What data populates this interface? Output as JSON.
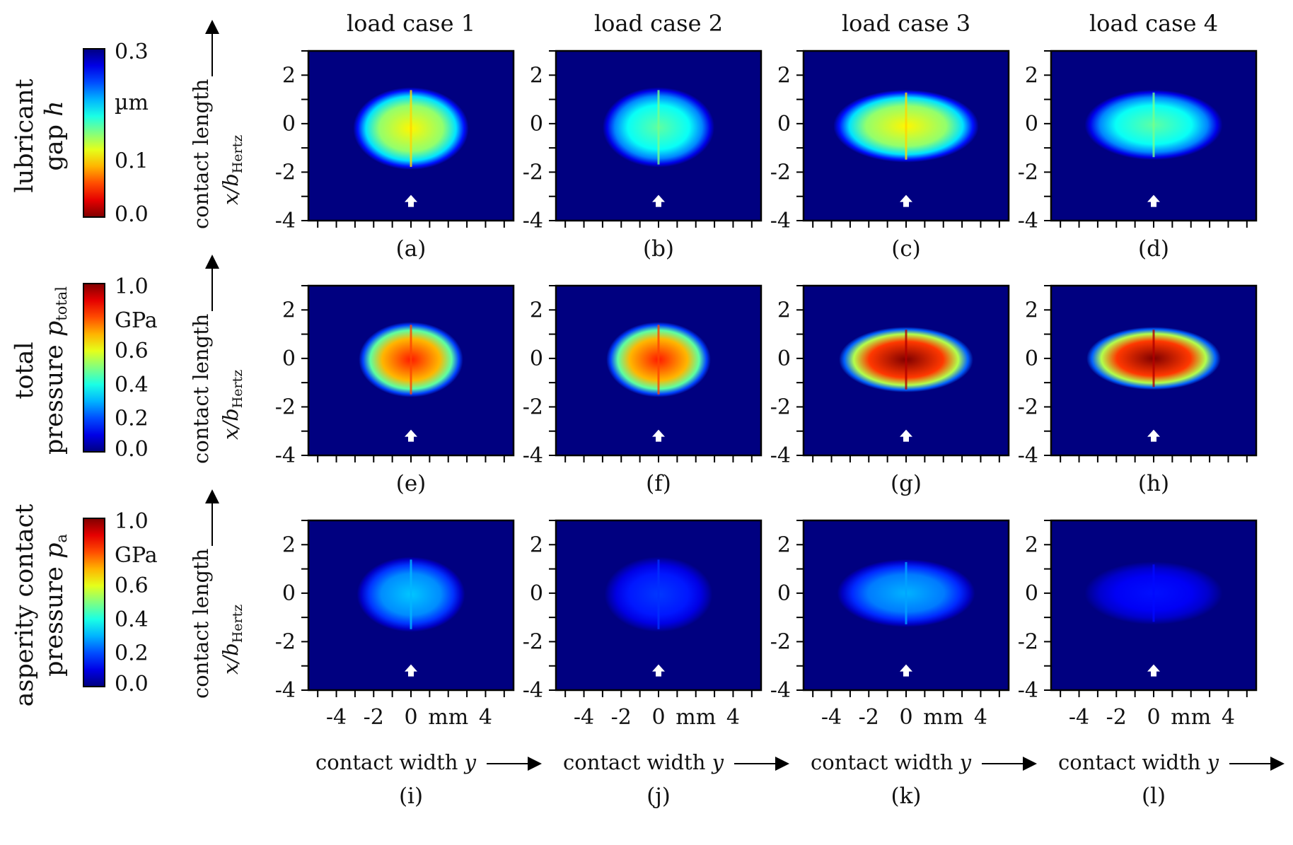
{
  "columns": [
    "load case 1",
    "load case 2",
    "load case 3",
    "load case 4"
  ],
  "panel_letters": [
    "(a)",
    "(b)",
    "(c)",
    "(d)",
    "(e)",
    "(f)",
    "(g)",
    "(h)",
    "(i)",
    "(j)",
    "(k)",
    "(l)"
  ],
  "rows": [
    {
      "label_line1": "lubricant",
      "label_line2_main": "gap ",
      "label_line2_var": "h",
      "label_line2_sub": "",
      "colorbar": {
        "ticks": [
          "0.3",
          "0.1",
          "0.0"
        ],
        "unit": "µm",
        "unit_after": "0.3",
        "direction": "low-red",
        "range": [
          0.0,
          0.3
        ]
      }
    },
    {
      "label_line1": "total",
      "label_line2_main": "pressure ",
      "label_line2_var": "p",
      "label_line2_sub": "total",
      "colorbar": {
        "ticks": [
          "1.0",
          "0.6",
          "0.4",
          "0.2",
          "0.0"
        ],
        "unit": "GPa",
        "unit_after": "1.0",
        "direction": "high-red",
        "range": [
          0.0,
          1.0
        ]
      }
    },
    {
      "label_line1": "asperity contact",
      "label_line2_main": "pressure ",
      "label_line2_var": "p",
      "label_line2_sub": "a",
      "colorbar": {
        "ticks": [
          "1.0",
          "0.6",
          "0.4",
          "0.2",
          "0.0"
        ],
        "unit": "GPa",
        "unit_after": "1.0",
        "direction": "high-red",
        "range": [
          0.0,
          1.0
        ]
      }
    }
  ],
  "y_axis": {
    "label_main": "contact length",
    "label_var": "x/b",
    "label_sub": "Hertz",
    "ticks": [
      "2",
      "0",
      "-2",
      "-4"
    ],
    "range": [
      -4,
      3
    ]
  },
  "x_axis": {
    "label_main": "contact width ",
    "label_var": "y",
    "ticks": [
      "-4",
      "-2",
      "0",
      "mm",
      "4"
    ],
    "range": [
      -5.5,
      5.5
    ]
  },
  "chart_data": {
    "type": "heatmap",
    "layout": "3 rows x 4 columns",
    "columns": [
      "load case 1",
      "load case 2",
      "load case 3",
      "load case 4"
    ],
    "row_quantities": [
      "lubricant gap h (µm)",
      "total pressure p_total (GPa)",
      "asperity contact pressure p_a (GPa)"
    ],
    "colormap": "jet",
    "panels": [
      {
        "id": "(a)",
        "quantity": "h",
        "half_width_y_mm": 3.1,
        "x_top": 1.5,
        "x_bottom": -1.9,
        "center_value": 0.11,
        "background_value": 0.3
      },
      {
        "id": "(b)",
        "quantity": "h",
        "half_width_y_mm": 3.0,
        "x_top": 1.5,
        "x_bottom": -1.8,
        "center_value": 0.16,
        "background_value": 0.3
      },
      {
        "id": "(c)",
        "quantity": "h",
        "half_width_y_mm": 3.9,
        "x_top": 1.4,
        "x_bottom": -1.6,
        "center_value": 0.11,
        "background_value": 0.3
      },
      {
        "id": "(d)",
        "quantity": "h",
        "half_width_y_mm": 3.7,
        "x_top": 1.4,
        "x_bottom": -1.5,
        "center_value": 0.16,
        "background_value": 0.3
      },
      {
        "id": "(e)",
        "quantity": "p_total",
        "half_width_y_mm": 2.8,
        "x_top": 1.5,
        "x_bottom": -1.6,
        "center_value": 0.85,
        "background_value": 0.0
      },
      {
        "id": "(f)",
        "quantity": "p_total",
        "half_width_y_mm": 2.8,
        "x_top": 1.5,
        "x_bottom": -1.6,
        "center_value": 0.85,
        "background_value": 0.0
      },
      {
        "id": "(g)",
        "quantity": "p_total",
        "half_width_y_mm": 3.6,
        "x_top": 1.3,
        "x_bottom": -1.4,
        "center_value": 1.0,
        "background_value": 0.0
      },
      {
        "id": "(h)",
        "quantity": "p_total",
        "half_width_y_mm": 3.6,
        "x_top": 1.3,
        "x_bottom": -1.3,
        "center_value": 1.0,
        "background_value": 0.0
      },
      {
        "id": "(i)",
        "quantity": "p_a",
        "half_width_y_mm": 2.9,
        "x_top": 1.5,
        "x_bottom": -1.6,
        "center_value": 0.32,
        "background_value": 0.0
      },
      {
        "id": "(j)",
        "quantity": "p_a",
        "half_width_y_mm": 2.9,
        "x_top": 1.5,
        "x_bottom": -1.6,
        "center_value": 0.18,
        "background_value": 0.0
      },
      {
        "id": "(k)",
        "quantity": "p_a",
        "half_width_y_mm": 3.7,
        "x_top": 1.4,
        "x_bottom": -1.4,
        "center_value": 0.3,
        "background_value": 0.0
      },
      {
        "id": "(l)",
        "quantity": "p_a",
        "half_width_y_mm": 3.7,
        "x_top": 1.3,
        "x_bottom": -1.3,
        "center_value": 0.14,
        "background_value": 0.0
      }
    ],
    "x_ticks": [
      -4,
      -2,
      0,
      4
    ],
    "y_ticks": [
      2,
      0,
      -2,
      -4
    ],
    "x_unit": "mm"
  }
}
